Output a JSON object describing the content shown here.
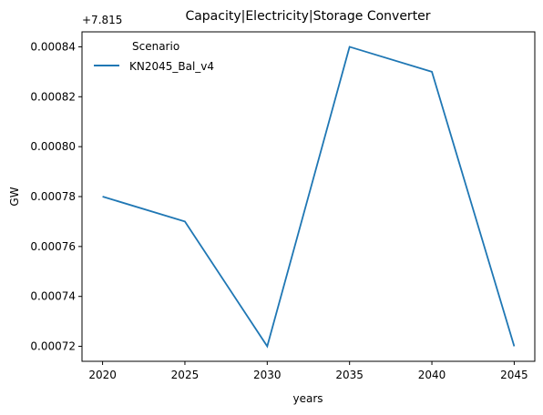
{
  "chart_data": {
    "type": "line",
    "title": "Capacity|Electricity|Storage Converter",
    "xlabel": "years",
    "ylabel": "GW",
    "y_offset_label": "+7.815",
    "x": [
      2020,
      2025,
      2030,
      2035,
      2040,
      2045
    ],
    "x_ticks": [
      "2020",
      "2025",
      "2030",
      "2035",
      "2040",
      "2045"
    ],
    "y_ticks": [
      "0.00072",
      "0.00074",
      "0.00076",
      "0.00078",
      "0.00080",
      "0.00082",
      "0.00084"
    ],
    "y_tick_values": [
      0.00072,
      0.00074,
      0.00076,
      0.00078,
      0.0008,
      0.00082,
      0.00084
    ],
    "xlim": [
      2018.75,
      2046.25
    ],
    "ylim": [
      0.000714,
      0.000846
    ],
    "series": [
      {
        "name": "KN2045_Bal_v4",
        "color": "#1f77b4",
        "values": [
          0.00078,
          0.00077,
          0.00072,
          0.00084,
          0.00083,
          0.00072
        ]
      }
    ],
    "legend": {
      "title": "Scenario",
      "placement": "top-left"
    },
    "grid": false
  }
}
